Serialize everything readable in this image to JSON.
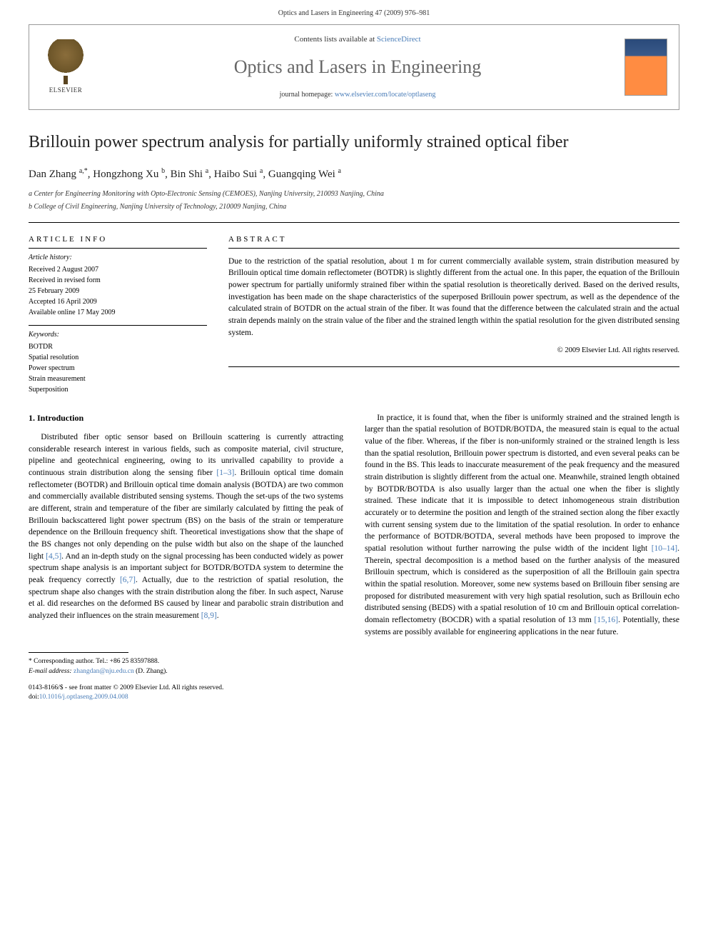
{
  "header": {
    "running_head": "Optics and Lasers in Engineering 47 (2009) 976–981"
  },
  "banner": {
    "publisher_name": "ELSEVIER",
    "contents_prefix": "Contents lists available at ",
    "contents_link_text": "ScienceDirect",
    "journal_name": "Optics and Lasers in Engineering",
    "homepage_prefix": "journal homepage: ",
    "homepage_url": "www.elsevier.com/locate/optlaseng"
  },
  "title": "Brillouin power spectrum analysis for partially uniformly strained optical fiber",
  "authors_html": "Dan Zhang <sup>a,*</sup>, Hongzhong Xu <sup>b</sup>, Bin Shi <sup>a</sup>, Haibo Sui <sup>a</sup>, Guangqing Wei <sup>a</sup>",
  "affiliations": [
    "a Center for Engineering Monitoring with Opto-Electronic Sensing (CEMOES), Nanjing University, 210093 Nanjing, China",
    "b College of Civil Engineering, Nanjing University of Technology, 210009 Nanjing, China"
  ],
  "article_info": {
    "heading": "ARTICLE INFO",
    "history_label": "Article history:",
    "history": [
      "Received 2 August 2007",
      "Received in revised form",
      "25 February 2009",
      "Accepted 16 April 2009",
      "Available online 17 May 2009"
    ],
    "keywords_label": "Keywords:",
    "keywords": [
      "BOTDR",
      "Spatial resolution",
      "Power spectrum",
      "Strain measurement",
      "Superposition"
    ]
  },
  "abstract": {
    "heading": "ABSTRACT",
    "text": "Due to the restriction of the spatial resolution, about 1 m for current commercially available system, strain distribution measured by Brillouin optical time domain reflectometer (BOTDR) is slightly different from the actual one. In this paper, the equation of the Brillouin power spectrum for partially uniformly strained fiber within the spatial resolution is theoretically derived. Based on the derived results, investigation has been made on the shape characteristics of the superposed Brillouin power spectrum, as well as the dependence of the calculated strain of BOTDR on the actual strain of the fiber. It was found that the difference between the calculated strain and the actual strain depends mainly on the strain value of the fiber and the strained length within the spatial resolution for the given distributed sensing system.",
    "copyright": "© 2009 Elsevier Ltd. All rights reserved."
  },
  "section1": {
    "heading": "1. Introduction",
    "para1_pre": "Distributed fiber optic sensor based on Brillouin scattering is currently attracting considerable research interest in various fields, such as composite material, civil structure, pipeline and geotechnical engineering, owing to its unrivalled capability to provide a continuous strain distribution along the sensing fiber ",
    "ref1": "[1–3]",
    "para1_mid1": ". Brillouin optical time domain reflectometer (BOTDR) and Brillouin optical time domain analysis (BOTDA) are two common and commercially available distributed sensing systems. Though the set-ups of the two systems are different, strain and temperature of the fiber are similarly calculated by fitting the peak of Brillouin backscattered light power spectrum (BS) on the basis of the strain or temperature dependence on the Brillouin frequency shift. Theoretical investigations show that the shape of the BS changes not only depending on the pulse width but also on the shape of the launched light ",
    "ref2": "[4,5]",
    "para1_mid2": ". And an in-depth study on the signal processing has been conducted widely as power spectrum shape analysis is an important subject for BOTDR/BOTDA system to determine the peak frequency correctly ",
    "ref3": "[6,7]",
    "para1_mid3": ". Actually, due to the restriction of spatial resolution, the spectrum shape also changes with the strain distribution along the fiber. In such aspect, Naruse et al. did researches on the deformed BS caused by linear and parabolic strain distribution and analyzed their influences on the strain measurement ",
    "ref4": "[8,9]",
    "para1_end": ".",
    "para2_pre": "In practice, it is found that, when the fiber is uniformly strained and the strained length is larger than the spatial resolution of BOTDR/BOTDA, the measured stain is equal to the actual value of the fiber. Whereas, if the fiber is non-uniformly strained or the strained length is less than the spatial resolution, Brillouin power spectrum is distorted, and even several peaks can be found in the BS. This leads to inaccurate measurement of the peak frequency and the measured strain distribution is slightly different from the actual one. Meanwhile, strained length obtained by BOTDR/BOTDA is also usually larger than the actual one when the fiber is slightly strained. These indicate that it is impossible to detect inhomogeneous strain distribution accurately or to determine the position and length of the strained section along the fiber exactly with current sensing system due to the limitation of the spatial resolution. In order to enhance the performance of BOTDR/BOTDA, several methods have been proposed to improve the spatial resolution without further narrowing the pulse width of the incident light ",
    "ref5": "[10–14]",
    "para2_mid1": ". Therein, spectral decomposition is a method based on the further analysis of the measured Brillouin spectrum, which is considered as the superposition of all the Brillouin gain spectra within the spatial resolution. Moreover, some new systems based on Brillouin fiber sensing are proposed for distributed measurement with very high spatial resolution, such as Brillouin echo distributed sensing (BEDS) with a spatial resolution of 10 cm and Brillouin optical correlation-domain reflectometry (BOCDR) with a spatial resolution of 13 mm ",
    "ref6": "[15,16]",
    "para2_end": ". Potentially, these systems are possibly available for engineering applications in the near future."
  },
  "footnotes": {
    "corr_label": "* Corresponding author. Tel.: +86 25 83597888.",
    "email_label": "E-mail address: ",
    "email": "zhangdan@nju.edu.cn",
    "email_suffix": " (D. Zhang)."
  },
  "bottom": {
    "issn_line": "0143-8166/$ - see front matter © 2009 Elsevier Ltd. All rights reserved.",
    "doi_prefix": "doi:",
    "doi": "10.1016/j.optlaseng.2009.04.008"
  }
}
